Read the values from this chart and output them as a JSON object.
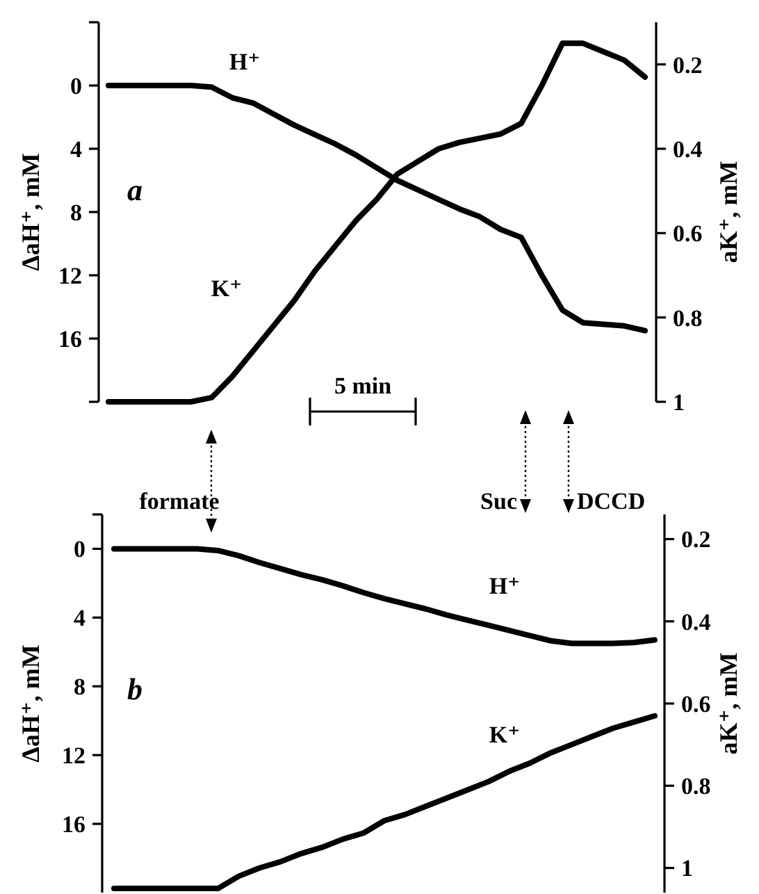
{
  "chart_data": [
    {
      "type": "line",
      "categories": [
        null,
        null,
        null,
        null,
        null,
        null,
        null,
        null,
        null,
        null,
        null,
        null,
        null,
        null,
        null,
        null,
        null,
        null,
        null,
        null,
        null,
        null,
        null,
        null,
        null,
        null,
        null
      ],
      "ylabel": "ΔaH⁺, mM",
      "y2label": "aK⁺, mM",
      "ylim": [
        20,
        -4
      ],
      "yticks": [
        {
          "value": -4,
          "label": null
        },
        0,
        4,
        8,
        12,
        16,
        {
          "value": 20,
          "label": null
        }
      ],
      "y2lim": [
        1,
        0.1
      ],
      "y2ticks": [
        0.2,
        0.4,
        0.6,
        0.8,
        1
      ],
      "series": [
        {
          "name": "H⁺",
          "color": "#000000",
          "values": [
            0,
            0,
            0,
            0,
            0,
            0.1,
            0.77,
            1.1,
            1.8,
            2.5,
            3.1,
            3.7,
            4.4,
            5.2,
            6.0,
            6.6,
            7.2,
            7.8,
            8.3,
            9.1,
            9.6,
            12.0,
            14.2,
            15.0,
            15.1,
            15.2,
            15.5
          ]
        },
        {
          "name": "K⁺",
          "color": "#000000",
          "axis": "y2",
          "values": [
            1,
            1,
            1,
            1,
            1,
            0.99,
            0.94,
            0.88,
            0.82,
            0.76,
            0.69,
            0.63,
            0.57,
            0.52,
            0.46,
            0.43,
            0.4,
            0.385,
            0.375,
            0.365,
            0.34,
            0.25,
            0.15,
            0.15,
            0.17,
            0.19,
            0.23
          ]
        }
      ],
      "annotations": [
        "a",
        "5 min"
      ],
      "legend": false,
      "grid": false,
      "line_style": "solid",
      "marker": "none"
    },
    {
      "type": "line",
      "categories": [
        null,
        null,
        null,
        null,
        null,
        null,
        null,
        null,
        null,
        null,
        null,
        null,
        null,
        null,
        null,
        null,
        null,
        null,
        null,
        null,
        null,
        null,
        null,
        null,
        null,
        null,
        null
      ],
      "ylabel": "ΔaH⁺, mM",
      "y2label": "aK⁺, mM",
      "ylim": [
        20,
        -2
      ],
      "yticks": [
        {
          "value": -2,
          "label": null
        },
        0,
        4,
        8,
        12,
        16
      ],
      "y2lim": [
        1.06,
        0.14
      ],
      "y2ticks": [
        0.2,
        0.4,
        0.6,
        0.8,
        1
      ],
      "series": [
        {
          "name": "H⁺",
          "color": "#000000",
          "values": [
            0,
            0,
            0,
            0,
            0,
            0.1,
            0.4,
            0.8,
            1.15,
            1.5,
            1.8,
            2.15,
            2.55,
            2.9,
            3.2,
            3.5,
            3.85,
            4.15,
            4.45,
            4.75,
            5.05,
            5.35,
            5.5,
            5.5,
            5.5,
            5.45,
            5.3
          ]
        },
        {
          "name": "K⁺",
          "color": "#000000",
          "axis": "y2",
          "values": [
            1.05,
            1.05,
            1.05,
            1.05,
            1.05,
            1.05,
            1.02,
            1.0,
            0.985,
            0.965,
            0.95,
            0.93,
            0.915,
            0.885,
            0.87,
            0.85,
            0.83,
            0.81,
            0.79,
            0.765,
            0.745,
            0.72,
            0.7,
            0.68,
            0.66,
            0.645,
            0.63
          ]
        }
      ],
      "annotations": [
        "b",
        "formate",
        "Suc",
        "DCCD"
      ],
      "legend": false,
      "grid": false,
      "line_style": "solid",
      "marker": "none"
    }
  ]
}
